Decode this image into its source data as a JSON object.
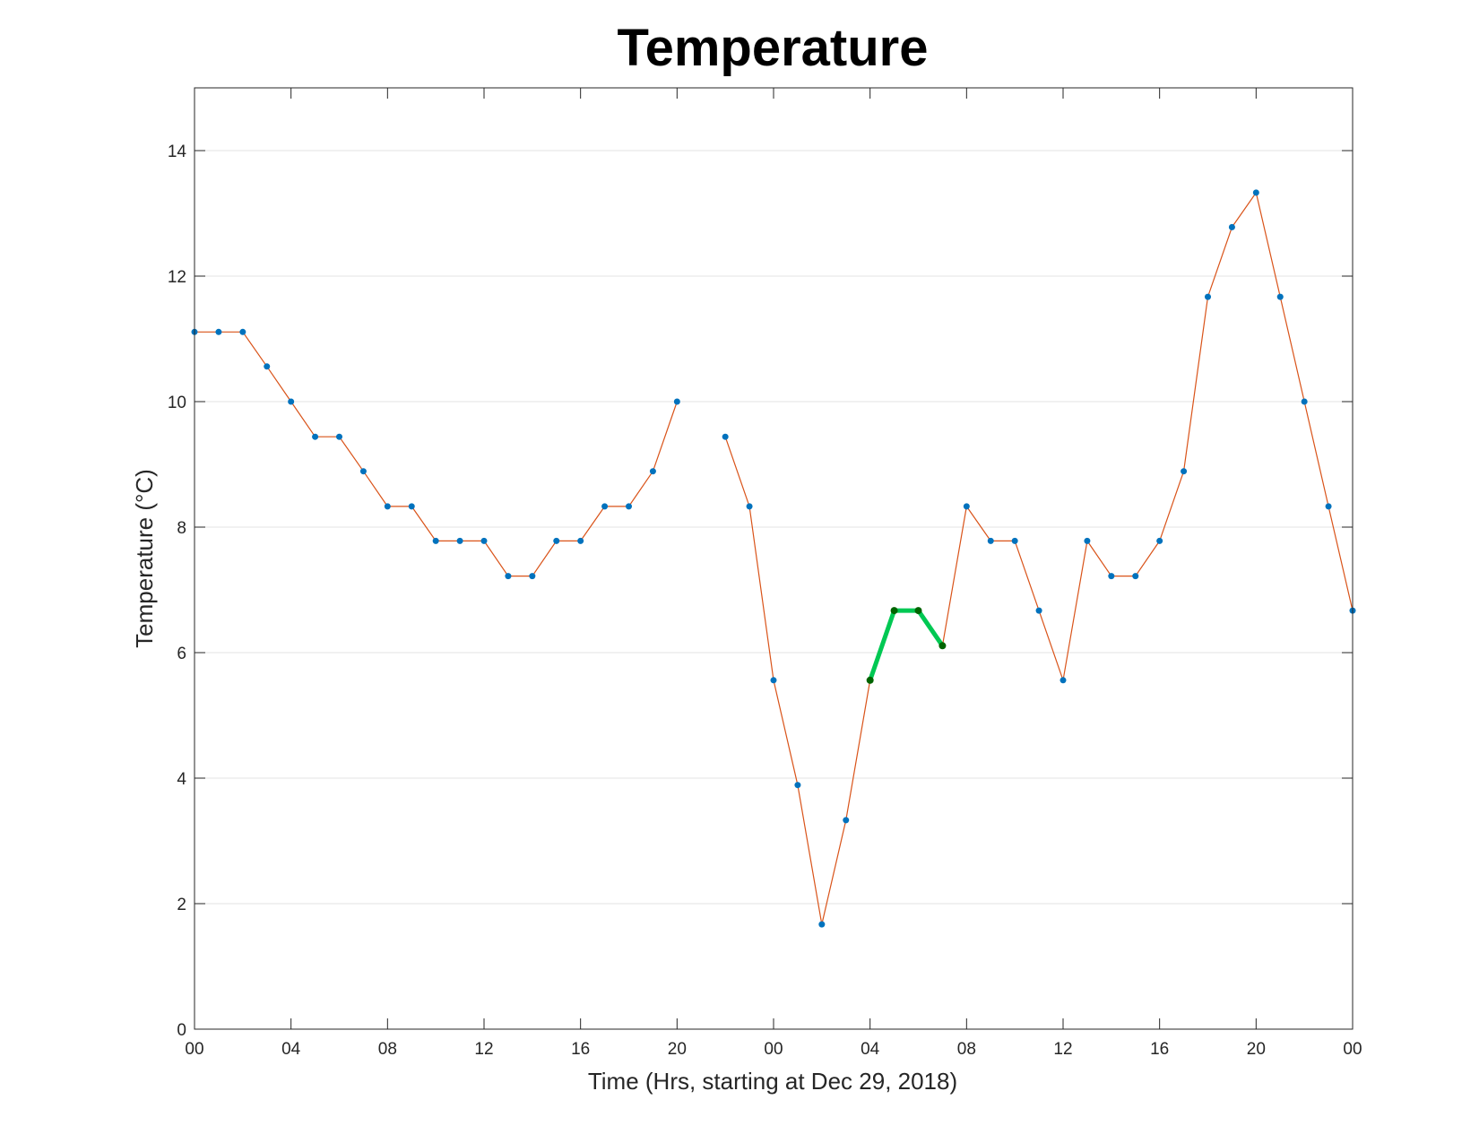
{
  "chart_data": {
    "type": "line",
    "title": "Temperature",
    "xlabel": "Time (Hrs, starting at Dec 29, 2018)",
    "ylabel": "Temperature (°C)",
    "xlim": [
      0,
      48
    ],
    "ylim": [
      0,
      15
    ],
    "grid": "horizontal",
    "x_ticks": [
      {
        "value": 0,
        "label": "00"
      },
      {
        "value": 4,
        "label": "04"
      },
      {
        "value": 8,
        "label": "08"
      },
      {
        "value": 12,
        "label": "12"
      },
      {
        "value": 16,
        "label": "16"
      },
      {
        "value": 20,
        "label": "20"
      },
      {
        "value": 24,
        "label": "00"
      },
      {
        "value": 28,
        "label": "04"
      },
      {
        "value": 32,
        "label": "08"
      },
      {
        "value": 36,
        "label": "12"
      },
      {
        "value": 40,
        "label": "16"
      },
      {
        "value": 44,
        "label": "20"
      },
      {
        "value": 48,
        "label": "00"
      }
    ],
    "y_ticks": [
      0,
      2,
      4,
      6,
      8,
      10,
      12,
      14
    ],
    "series": [
      {
        "color": "#D95319",
        "marker_color": "#0072BD",
        "points": [
          [
            0,
            11.11
          ],
          [
            1,
            11.11
          ],
          [
            2,
            11.11
          ],
          [
            3,
            10.56
          ],
          [
            4,
            10.0
          ],
          [
            5,
            9.44
          ],
          [
            6,
            9.44
          ],
          [
            7,
            8.89
          ],
          [
            8,
            8.33
          ],
          [
            9,
            8.33
          ],
          [
            10,
            7.78
          ],
          [
            11,
            7.78
          ],
          [
            12,
            7.78
          ],
          [
            13,
            7.22
          ],
          [
            14,
            7.22
          ],
          [
            15,
            7.78
          ],
          [
            16,
            7.78
          ],
          [
            17,
            8.33
          ],
          [
            18,
            8.33
          ],
          [
            19,
            8.89
          ],
          [
            20,
            10.0
          ],
          [
            21,
            null
          ],
          [
            22,
            9.44
          ],
          [
            23,
            8.33
          ],
          [
            24,
            5.56
          ],
          [
            25,
            3.89
          ],
          [
            26,
            1.67
          ],
          [
            27,
            3.33
          ],
          [
            28,
            5.56
          ],
          [
            29,
            6.67
          ],
          [
            30,
            6.67
          ],
          [
            31,
            6.11
          ],
          [
            32,
            8.33
          ],
          [
            33,
            7.78
          ],
          [
            34,
            7.78
          ],
          [
            35,
            6.67
          ],
          [
            36,
            5.56
          ],
          [
            37,
            7.78
          ],
          [
            38,
            7.22
          ],
          [
            39,
            7.22
          ],
          [
            40,
            7.78
          ],
          [
            41,
            8.89
          ],
          [
            42,
            11.67
          ],
          [
            43,
            12.78
          ],
          [
            44,
            13.33
          ],
          [
            45,
            11.67
          ],
          [
            46,
            10.0
          ],
          [
            47,
            8.33
          ],
          [
            48,
            6.67
          ]
        ]
      },
      {
        "color": "#00C853",
        "marker_color": "#006400",
        "points": [
          [
            28,
            5.56
          ],
          [
            29,
            6.67
          ],
          [
            30,
            6.67
          ],
          [
            31,
            6.11
          ]
        ]
      }
    ]
  }
}
